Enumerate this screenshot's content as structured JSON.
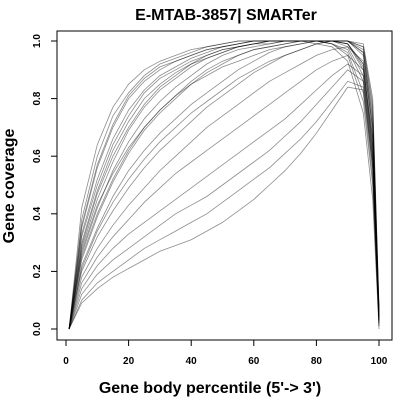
{
  "chart_data": {
    "type": "line",
    "title": "E-MTAB-3857| SMARTer",
    "xlabel": "Gene body percentile (5'-> 3')",
    "ylabel": "Gene coverage",
    "xlim": [
      0,
      100
    ],
    "ylim": [
      0.0,
      1.0
    ],
    "xticks": [
      "0",
      "20",
      "40",
      "60",
      "80",
      "100"
    ],
    "yticks": [
      "0.0",
      "0.2",
      "0.4",
      "0.6",
      "0.8",
      "1.0"
    ],
    "grid": false,
    "legend": "none",
    "line_color": "#000000",
    "x": [
      1,
      5,
      10,
      15,
      20,
      25,
      30,
      35,
      40,
      45,
      50,
      55,
      60,
      65,
      70,
      75,
      80,
      85,
      90,
      95,
      98,
      100
    ],
    "series": [
      {
        "values": [
          0.0,
          0.42,
          0.64,
          0.77,
          0.85,
          0.9,
          0.93,
          0.95,
          0.97,
          0.98,
          0.99,
          1.0,
          1.0,
          1.0,
          1.0,
          1.0,
          0.99,
          0.98,
          0.93,
          0.75,
          0.45,
          0.0
        ]
      },
      {
        "values": [
          0.0,
          0.38,
          0.6,
          0.74,
          0.82,
          0.88,
          0.92,
          0.94,
          0.96,
          0.98,
          0.99,
          1.0,
          1.0,
          1.0,
          1.0,
          1.0,
          1.0,
          0.99,
          0.96,
          0.82,
          0.52,
          0.02
        ]
      },
      {
        "values": [
          0.0,
          0.35,
          0.56,
          0.7,
          0.8,
          0.86,
          0.9,
          0.93,
          0.95,
          0.97,
          0.98,
          0.99,
          1.0,
          1.0,
          1.0,
          1.0,
          1.0,
          1.0,
          0.98,
          0.88,
          0.58,
          0.03
        ]
      },
      {
        "values": [
          0.0,
          0.33,
          0.52,
          0.66,
          0.76,
          0.83,
          0.88,
          0.91,
          0.94,
          0.96,
          0.98,
          0.99,
          1.0,
          1.0,
          1.0,
          1.0,
          1.0,
          1.0,
          0.99,
          0.92,
          0.62,
          0.04
        ]
      },
      {
        "values": [
          0.0,
          0.3,
          0.48,
          0.62,
          0.72,
          0.8,
          0.85,
          0.89,
          0.92,
          0.95,
          0.97,
          0.98,
          0.99,
          1.0,
          1.0,
          1.0,
          1.0,
          1.0,
          1.0,
          0.95,
          0.68,
          0.05
        ]
      },
      {
        "values": [
          0.0,
          0.28,
          0.45,
          0.58,
          0.69,
          0.77,
          0.83,
          0.87,
          0.91,
          0.94,
          0.96,
          0.98,
          0.99,
          1.0,
          1.0,
          1.0,
          1.0,
          1.0,
          1.0,
          0.97,
          0.72,
          0.06
        ]
      },
      {
        "values": [
          0.0,
          0.26,
          0.42,
          0.55,
          0.65,
          0.73,
          0.79,
          0.84,
          0.88,
          0.92,
          0.95,
          0.97,
          0.98,
          0.99,
          1.0,
          1.0,
          1.0,
          1.0,
          1.0,
          0.98,
          0.76,
          0.07
        ]
      },
      {
        "values": [
          0.0,
          0.24,
          0.39,
          0.51,
          0.61,
          0.69,
          0.75,
          0.8,
          0.85,
          0.89,
          0.92,
          0.95,
          0.97,
          0.98,
          0.99,
          1.0,
          1.0,
          1.0,
          1.0,
          0.99,
          0.8,
          0.08
        ]
      },
      {
        "values": [
          0.0,
          0.32,
          0.5,
          0.64,
          0.74,
          0.82,
          0.87,
          0.9,
          0.93,
          0.95,
          0.97,
          0.98,
          0.99,
          0.99,
          1.0,
          1.0,
          1.0,
          0.99,
          0.97,
          0.86,
          0.55,
          0.03
        ]
      },
      {
        "values": [
          0.0,
          0.36,
          0.57,
          0.71,
          0.81,
          0.87,
          0.91,
          0.93,
          0.95,
          0.97,
          0.98,
          0.99,
          1.0,
          1.0,
          1.0,
          1.0,
          1.0,
          0.99,
          0.95,
          0.79,
          0.5,
          0.01
        ]
      },
      {
        "values": [
          0.0,
          0.29,
          0.47,
          0.6,
          0.7,
          0.78,
          0.84,
          0.88,
          0.92,
          0.94,
          0.96,
          0.98,
          0.99,
          1.0,
          1.0,
          1.0,
          1.0,
          1.0,
          1.0,
          0.96,
          0.7,
          0.06
        ]
      },
      {
        "values": [
          0.0,
          0.22,
          0.35,
          0.46,
          0.55,
          0.62,
          0.68,
          0.73,
          0.78,
          0.82,
          0.86,
          0.9,
          0.93,
          0.96,
          0.98,
          0.99,
          1.0,
          1.0,
          1.0,
          0.98,
          0.78,
          0.07
        ]
      },
      {
        "values": [
          0.0,
          0.2,
          0.32,
          0.41,
          0.49,
          0.56,
          0.62,
          0.67,
          0.72,
          0.77,
          0.81,
          0.85,
          0.89,
          0.92,
          0.95,
          0.97,
          0.99,
          1.0,
          1.0,
          0.96,
          0.74,
          0.06
        ]
      },
      {
        "values": [
          0.0,
          0.18,
          0.28,
          0.36,
          0.43,
          0.49,
          0.55,
          0.6,
          0.65,
          0.7,
          0.74,
          0.78,
          0.82,
          0.86,
          0.89,
          0.92,
          0.95,
          0.97,
          0.98,
          0.93,
          0.7,
          0.05
        ]
      },
      {
        "values": [
          0.0,
          0.16,
          0.25,
          0.32,
          0.38,
          0.44,
          0.49,
          0.54,
          0.58,
          0.62,
          0.66,
          0.7,
          0.74,
          0.78,
          0.82,
          0.86,
          0.9,
          0.93,
          0.95,
          0.9,
          0.66,
          0.04
        ]
      },
      {
        "values": [
          0.0,
          0.14,
          0.22,
          0.28,
          0.33,
          0.37,
          0.41,
          0.45,
          0.49,
          0.53,
          0.57,
          0.61,
          0.65,
          0.69,
          0.73,
          0.78,
          0.83,
          0.88,
          0.92,
          0.88,
          0.63,
          0.03
        ]
      },
      {
        "values": [
          0.0,
          0.12,
          0.19,
          0.24,
          0.28,
          0.32,
          0.36,
          0.4,
          0.43,
          0.46,
          0.5,
          0.54,
          0.58,
          0.62,
          0.67,
          0.72,
          0.78,
          0.84,
          0.9,
          0.86,
          0.6,
          0.02
        ]
      },
      {
        "values": [
          0.0,
          0.1,
          0.16,
          0.2,
          0.24,
          0.28,
          0.31,
          0.34,
          0.37,
          0.4,
          0.44,
          0.48,
          0.52,
          0.56,
          0.61,
          0.66,
          0.72,
          0.79,
          0.86,
          0.84,
          0.58,
          0.02
        ]
      },
      {
        "values": [
          0.0,
          0.09,
          0.14,
          0.18,
          0.21,
          0.24,
          0.27,
          0.29,
          0.31,
          0.34,
          0.37,
          0.41,
          0.45,
          0.5,
          0.55,
          0.61,
          0.68,
          0.76,
          0.84,
          0.83,
          0.56,
          0.01
        ]
      },
      {
        "values": [
          0.0,
          0.27,
          0.43,
          0.54,
          0.63,
          0.7,
          0.76,
          0.81,
          0.85,
          0.88,
          0.91,
          0.93,
          0.95,
          0.97,
          0.98,
          0.99,
          1.0,
          1.0,
          0.99,
          0.91,
          0.64,
          0.04
        ]
      },
      {
        "values": [
          0.0,
          0.25,
          0.4,
          0.52,
          0.62,
          0.7,
          0.76,
          0.81,
          0.86,
          0.9,
          0.93,
          0.95,
          0.97,
          0.98,
          0.99,
          1.0,
          1.0,
          1.0,
          0.99,
          0.9,
          0.6,
          0.03
        ]
      },
      {
        "values": [
          0.0,
          0.21,
          0.34,
          0.44,
          0.52,
          0.59,
          0.65,
          0.7,
          0.75,
          0.79,
          0.83,
          0.87,
          0.9,
          0.93,
          0.95,
          0.97,
          0.99,
          1.0,
          0.99,
          0.92,
          0.66,
          0.04
        ]
      }
    ]
  }
}
